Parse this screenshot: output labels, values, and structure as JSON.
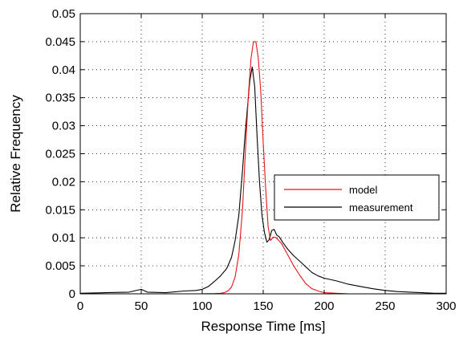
{
  "chart_data": {
    "type": "line",
    "title": "",
    "xlabel": "Response Time [ms]",
    "ylabel": "Relative Frequency",
    "xlim": [
      0,
      300
    ],
    "ylim": [
      0,
      0.05
    ],
    "xticks": [
      "0",
      "50",
      "100",
      "150",
      "200",
      "250",
      "300"
    ],
    "yticks": [
      "0",
      "0.005",
      "0.01",
      "0.015",
      "0.02",
      "0.025",
      "0.03",
      "0.035",
      "0.04",
      "0.045",
      "0.05"
    ],
    "grid": true,
    "legend_position": "middle-right",
    "series": [
      {
        "name": "model",
        "color": "#e8141b",
        "x": [
          0,
          60,
          100,
          110,
          115,
          118,
          121,
          124,
          127,
          130,
          133,
          136,
          138,
          140,
          142,
          144,
          146,
          148,
          150,
          152,
          154,
          156,
          158,
          160,
          162,
          165,
          170,
          175,
          180,
          185,
          190,
          195,
          200,
          210,
          220,
          250,
          300
        ],
        "y": [
          0,
          0,
          0,
          5e-05,
          0.0001,
          0.0002,
          0.0005,
          0.0012,
          0.003,
          0.007,
          0.015,
          0.028,
          0.036,
          0.042,
          0.045,
          0.045,
          0.042,
          0.036,
          0.027,
          0.019,
          0.012,
          0.0095,
          0.0101,
          0.0101,
          0.0097,
          0.009,
          0.007,
          0.005,
          0.0033,
          0.0018,
          0.0009,
          0.0005,
          0.0002,
          0.0001,
          0,
          0,
          0
        ]
      },
      {
        "name": "measurement",
        "color": "#000000",
        "x": [
          0,
          20,
          40,
          50,
          55,
          70,
          85,
          95,
          100,
          105,
          110,
          115,
          120,
          124,
          127,
          130,
          133,
          135,
          137,
          139,
          141,
          143,
          145,
          147,
          149,
          151,
          153,
          155,
          157,
          159,
          161,
          163,
          166,
          170,
          175,
          180,
          185,
          190,
          195,
          200,
          210,
          220,
          230,
          240,
          250,
          260,
          270,
          280,
          290,
          300
        ],
        "y": [
          0.0001,
          0.0002,
          0.0003,
          0.0008,
          0.0003,
          0.0002,
          0.0005,
          0.0006,
          0.0008,
          0.0013,
          0.0022,
          0.0032,
          0.0045,
          0.0065,
          0.0095,
          0.014,
          0.022,
          0.028,
          0.033,
          0.038,
          0.0405,
          0.037,
          0.028,
          0.02,
          0.014,
          0.011,
          0.0092,
          0.0097,
          0.0113,
          0.0115,
          0.0105,
          0.0102,
          0.0092,
          0.008,
          0.0068,
          0.0058,
          0.0048,
          0.0038,
          0.0032,
          0.0028,
          0.0023,
          0.0017,
          0.0013,
          0.0009,
          0.0006,
          0.0004,
          0.0003,
          0.0002,
          0.0001,
          0.0001
        ]
      }
    ]
  }
}
